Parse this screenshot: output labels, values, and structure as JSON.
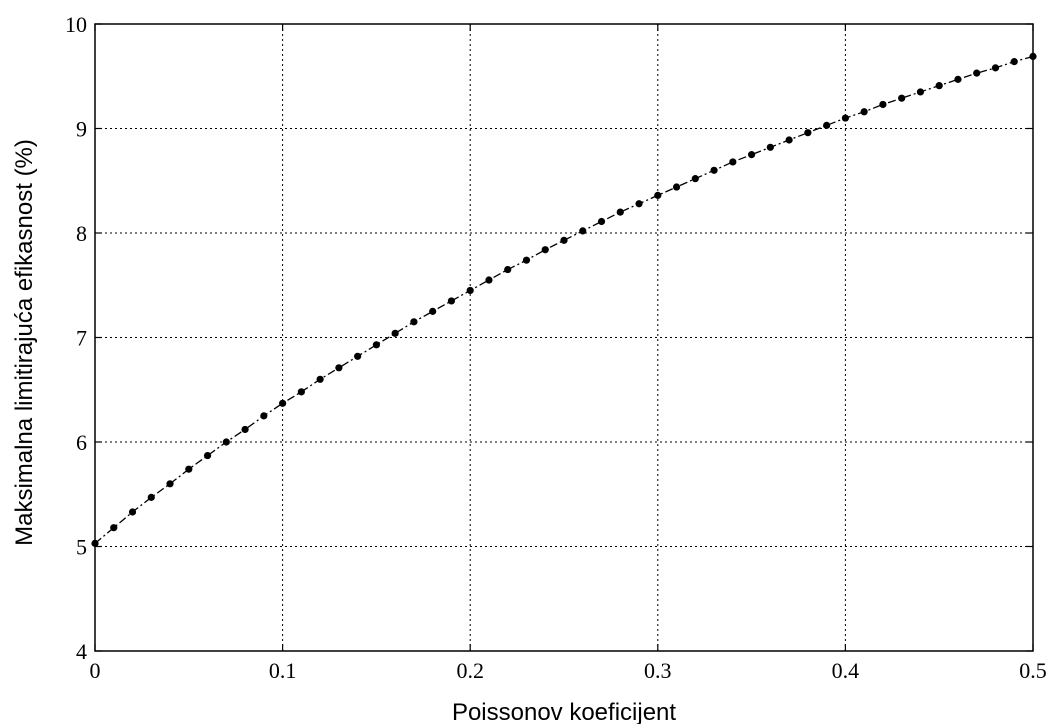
{
  "chart_data": {
    "type": "line",
    "title": "",
    "xlabel": "Poissonov koeficijent",
    "ylabel": "Maksimalna limitirajuća efikasnost (%)",
    "xlim": [
      0,
      0.5
    ],
    "ylim": [
      4,
      10
    ],
    "xticks": [
      "0",
      "0.1",
      "0.2",
      "0.3",
      "0.4",
      "0.5"
    ],
    "yticks": [
      "4",
      "5",
      "6",
      "7",
      "8",
      "9",
      "10"
    ],
    "grid": true,
    "legend": "none",
    "series": [
      {
        "marker": "filled-circle",
        "line_style": "dash-dot",
        "color": "#000000",
        "x": [
          0,
          0.01,
          0.02,
          0.03,
          0.04,
          0.05,
          0.06,
          0.07,
          0.08,
          0.09,
          0.1,
          0.11,
          0.12,
          0.13,
          0.14,
          0.15,
          0.16,
          0.17,
          0.18,
          0.19,
          0.2,
          0.21,
          0.22,
          0.23,
          0.24,
          0.25,
          0.26,
          0.27,
          0.28,
          0.29,
          0.3,
          0.31,
          0.32,
          0.33,
          0.34,
          0.35,
          0.36,
          0.37,
          0.38,
          0.39,
          0.4,
          0.41,
          0.42,
          0.43,
          0.44,
          0.45,
          0.46,
          0.47,
          0.48,
          0.49,
          0.5
        ],
        "y": [
          5.03,
          5.18,
          5.33,
          5.47,
          5.6,
          5.74,
          5.87,
          6.0,
          6.12,
          6.25,
          6.37,
          6.48,
          6.6,
          6.71,
          6.82,
          6.93,
          7.04,
          7.15,
          7.25,
          7.35,
          7.45,
          7.55,
          7.65,
          7.74,
          7.84,
          7.93,
          8.02,
          8.11,
          8.2,
          8.28,
          8.36,
          8.44,
          8.52,
          8.6,
          8.68,
          8.75,
          8.82,
          8.89,
          8.96,
          9.03,
          9.1,
          9.16,
          9.23,
          9.29,
          9.35,
          9.41,
          9.47,
          9.53,
          9.58,
          9.64,
          9.69
        ]
      }
    ]
  }
}
